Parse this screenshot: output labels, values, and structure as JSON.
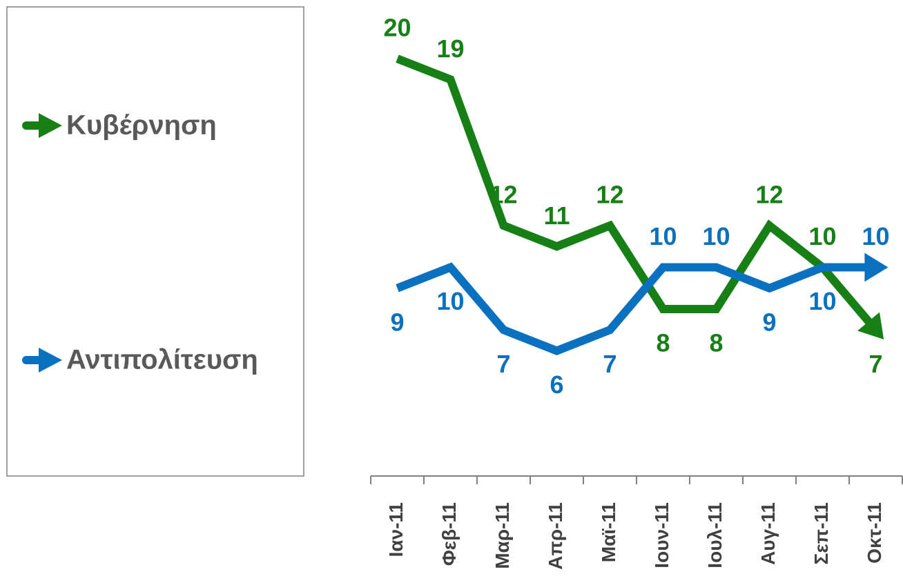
{
  "chart_data": {
    "type": "line",
    "categories": [
      "Ιαν-11",
      "Φεβ-11",
      "Μαρ-11",
      "Απρ-11",
      "Μαϊ-11",
      "Ιουν-11",
      "Ιουλ-11",
      "Αυγ-11",
      "Σεπ-11",
      "Οκτ-11"
    ],
    "series": [
      {
        "name": "Κυβέρνηση",
        "color": "#168016",
        "values": [
          20,
          19,
          12,
          11,
          12,
          8,
          8,
          12,
          10,
          7
        ]
      },
      {
        "name": "Αντιπολίτευση",
        "color": "#0a70c0",
        "values": [
          9,
          10,
          7,
          6,
          7,
          10,
          10,
          9,
          10,
          10
        ]
      }
    ],
    "ylim": [
      0,
      22
    ],
    "legend": "left"
  }
}
